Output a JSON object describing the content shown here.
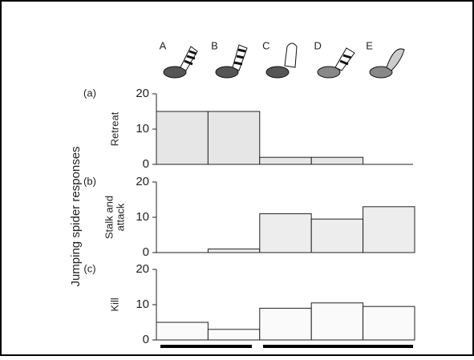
{
  "figure_ylabel": "Jumping spider responses",
  "chart_data": [
    {
      "type": "bar",
      "panel": "(a)",
      "ylabel": [
        "Retreat"
      ],
      "categories": [
        "A",
        "B",
        "C",
        "D",
        "E"
      ],
      "values": [
        15,
        15,
        2,
        2,
        0
      ],
      "color": "#e6e6e6",
      "ylim": [
        0,
        20
      ],
      "yticks": [
        0,
        10,
        20
      ]
    },
    {
      "type": "bar",
      "panel": "(b)",
      "ylabel": [
        "Stalk and",
        "attack"
      ],
      "values": [
        0,
        1,
        11,
        9.5,
        13
      ],
      "color": "#ededed",
      "ylim": [
        0,
        20
      ],
      "yticks": [
        0,
        10,
        20
      ]
    },
    {
      "type": "bar",
      "panel": "(c)",
      "ylabel": [
        "Kill"
      ],
      "values": [
        5,
        3,
        9,
        10.5,
        9.5
      ],
      "color": "#fafafa",
      "ylim": [
        0,
        20
      ],
      "yticks": [
        0,
        10,
        20
      ]
    }
  ]
}
